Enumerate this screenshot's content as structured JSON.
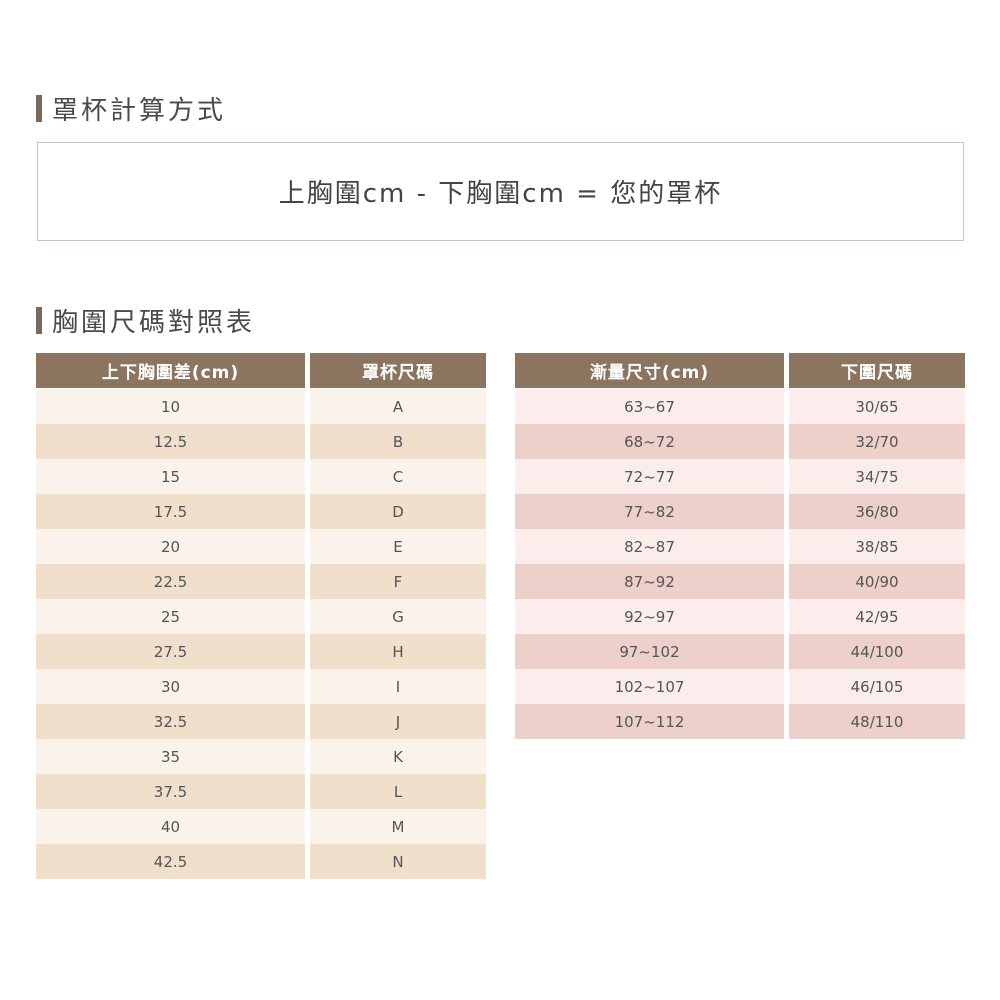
{
  "section1": {
    "title": "罩杯計算方式",
    "formula": "上胸圍cm - 下胸圍cm = 您的罩杯"
  },
  "section2": {
    "title": "胸圍尺碼對照表"
  },
  "cup_table": {
    "headers": [
      "上下胸圍差(cm)",
      "罩杯尺碼"
    ],
    "diff": [
      "10",
      "12.5",
      "15",
      "17.5",
      "20",
      "22.5",
      "25",
      "27.5",
      "30",
      "32.5",
      "35",
      "37.5",
      "40",
      "42.5"
    ],
    "cup": [
      "A",
      "B",
      "C",
      "D",
      "E",
      "F",
      "G",
      "H",
      "I",
      "J",
      "K",
      "L",
      "M",
      "N"
    ]
  },
  "band_table": {
    "headers": [
      "漸量尺寸(cm)",
      "下圍尺碼"
    ],
    "range": [
      "63~67",
      "68~72",
      "72~77",
      "77~82",
      "82~87",
      "87~92",
      "92~97",
      "97~102",
      "102~107",
      "107~112"
    ],
    "band": [
      "30/65",
      "32/70",
      "34/75",
      "36/80",
      "38/85",
      "40/90",
      "42/95",
      "44/100",
      "46/105",
      "48/110"
    ]
  },
  "colors": {
    "header": "#8b7561",
    "accent_bar": "#7b6a5c"
  }
}
